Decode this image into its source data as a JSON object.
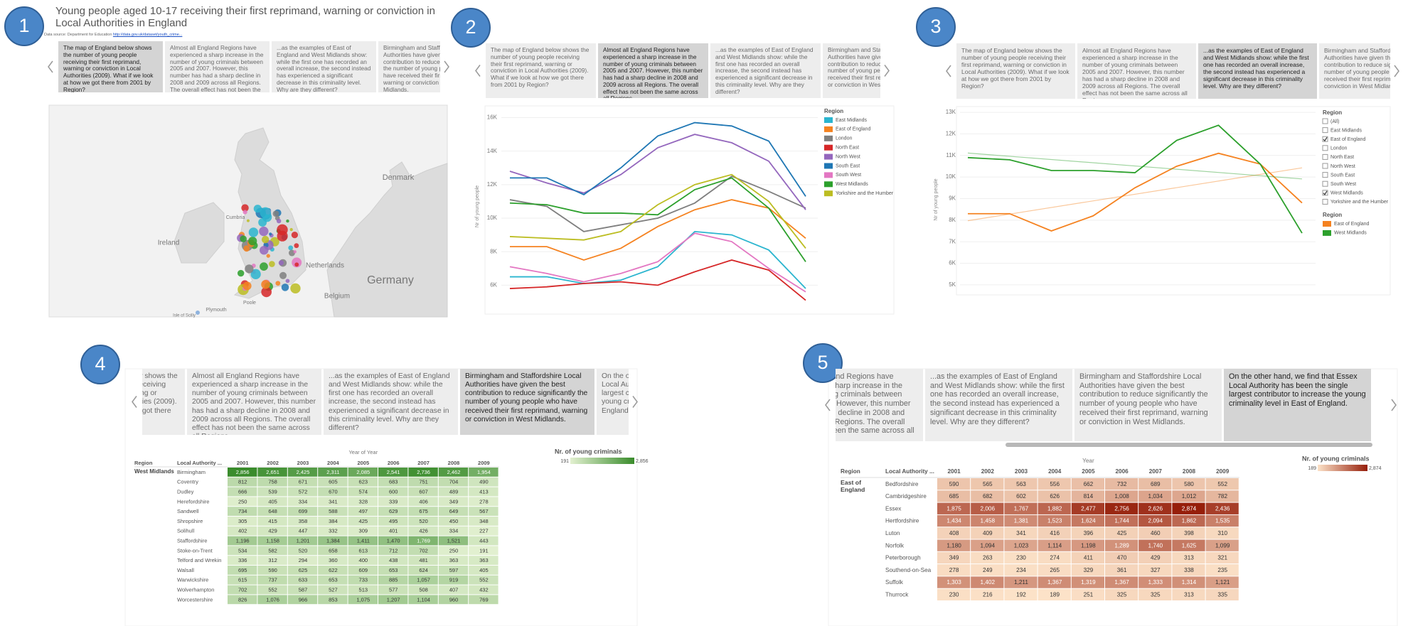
{
  "badges": [
    "1",
    "2",
    "3",
    "4",
    "5"
  ],
  "story_points": [
    "The map of England below shows the number of young people receiving their first reprimand, warning or conviction in Local Authorities (2009). What if we look at how we got there from 2001 by Region?",
    "Almost all England Regions have experienced a sharp increase in the number of young criminals between 2005 and 2007. However, this number has had a sharp decline in 2008 and 2009 across all Regions. The overall effect has not been the same across all Regions...",
    "...as the examples of East of England and West Midlands show: while the first one has recorded an overall increase, the second instead has experienced a significant decrease in this criminality level. Why are they different?",
    "Birmingham and Staffordshire Local Authorities have given the best contribution to reduce significantly the number of young people who have received their first reprimand, warning or conviction in West Midlands.",
    "On the other hand, we find that Essex Local Authority has been the single largest contributor to increase the young criminality level in East of England."
  ],
  "panel1": {
    "title": "Young people aged 10-17 receiving their first reprimand, warning or conviction in Local Authorities in England",
    "source": "Data source: Department for Education",
    "source_link": "http://data.gov.uk/dataset/youth_crime...",
    "map_labels": [
      "Denmark",
      "Ireland",
      "Cumbria",
      "Netherlands",
      "Germany",
      "Belgium",
      "Plymouth",
      "Poole",
      "Isle of Scilly"
    ]
  },
  "chart_data": [
    {
      "type": "line",
      "y_label": "Nr of young people",
      "legend_title": "Region",
      "ylim": [
        4700,
        16700
      ],
      "yticks": [
        {
          "value": 6000,
          "label": "6K"
        },
        {
          "value": 8000,
          "label": "8K"
        },
        {
          "value": 10000,
          "label": "10K"
        },
        {
          "value": 12000,
          "label": "12K"
        },
        {
          "value": 14000,
          "label": "14K"
        },
        {
          "value": 16000,
          "label": "16K"
        }
      ],
      "grid": true,
      "series": [
        {
          "name": "East Midlands",
          "color": "#2bb5cf",
          "values": [
            6500,
            6500,
            6100,
            6300,
            7100,
            9200,
            9000,
            8100,
            5800
          ]
        },
        {
          "name": "East of England",
          "color": "#f58220",
          "values": [
            8300,
            8300,
            7500,
            8200,
            9500,
            10500,
            11100,
            10600,
            8800
          ]
        },
        {
          "name": "London",
          "color": "#7f7f7f",
          "values": [
            11100,
            10700,
            9200,
            9600,
            10000,
            10900,
            12500,
            11600,
            10600
          ]
        },
        {
          "name": "North East",
          "color": "#d62728",
          "values": [
            5800,
            5900,
            6100,
            6200,
            6000,
            6800,
            7500,
            6900,
            5100
          ]
        },
        {
          "name": "North West",
          "color": "#9467bd",
          "values": [
            12800,
            12100,
            11500,
            12600,
            14200,
            15000,
            14500,
            13400,
            10500
          ]
        },
        {
          "name": "South East",
          "color": "#1f77b4",
          "values": [
            12400,
            12400,
            11400,
            13000,
            14900,
            15700,
            15500,
            14600,
            11300
          ]
        },
        {
          "name": "South West",
          "color": "#e377c2",
          "values": [
            7100,
            6700,
            6200,
            6700,
            7400,
            9100,
            8600,
            7000,
            5600
          ]
        },
        {
          "name": "West Midlands",
          "color": "#2ca02c",
          "values": [
            10900,
            10800,
            10300,
            10300,
            10200,
            11700,
            12400,
            10600,
            7400
          ]
        },
        {
          "name": "Yorkshire and the Humber",
          "color": "#bcbd22",
          "values": [
            8900,
            8800,
            8700,
            9200,
            10800,
            12000,
            12600,
            11000,
            8200
          ]
        }
      ]
    },
    {
      "type": "line",
      "y_label": "Nr of young people",
      "filter_title": "Region",
      "filter_items": [
        {
          "label": "(All)",
          "checked": false
        },
        {
          "label": "East Midlands",
          "checked": false
        },
        {
          "label": "East of England",
          "checked": true
        },
        {
          "label": "London",
          "checked": false
        },
        {
          "label": "North East",
          "checked": false
        },
        {
          "label": "North West",
          "checked": false
        },
        {
          "label": "South East",
          "checked": false
        },
        {
          "label": "South West",
          "checked": false
        },
        {
          "label": "West Midlands",
          "checked": true
        },
        {
          "label": "Yorkshire and the Humber",
          "checked": false
        }
      ],
      "legend_title": "Region",
      "trend_lines": true,
      "ylim": [
        4700,
        13200
      ],
      "yticks": [
        {
          "value": 5000,
          "label": "5K"
        },
        {
          "value": 6000,
          "label": "6K"
        },
        {
          "value": 7000,
          "label": "7K"
        },
        {
          "value": 8000,
          "label": "8K"
        },
        {
          "value": 9000,
          "label": "9K"
        },
        {
          "value": 10000,
          "label": "10K"
        },
        {
          "value": 11000,
          "label": "11K"
        },
        {
          "value": 12000,
          "label": "12K"
        },
        {
          "value": 13000,
          "label": "13K"
        }
      ],
      "grid": true,
      "series": [
        {
          "name": "East of England",
          "color": "#f58220",
          "values": [
            8300,
            8300,
            7500,
            8200,
            9500,
            10500,
            11100,
            10600,
            8800
          ]
        },
        {
          "name": "West Midlands",
          "color": "#2ca02c",
          "values": [
            10900,
            10800,
            10300,
            10300,
            10200,
            11700,
            12400,
            10600,
            7400
          ]
        }
      ]
    }
  ],
  "tables": [
    {
      "header_title": "Year of Year",
      "columns": [
        "Region",
        "Local Authority ...",
        "2001",
        "2002",
        "2003",
        "2004",
        "2005",
        "2006",
        "2007",
        "2008",
        "2009"
      ],
      "region": "West Midlands",
      "legend_title": "Nr. of young criminals",
      "legend_min": {
        "value": 191,
        "label": "191"
      },
      "legend_max": {
        "value": 2856,
        "label": "2,856"
      },
      "rows": [
        {
          "name": "Birmingham",
          "cells": [
            "2,856",
            "2,651",
            "2,425",
            "2,311",
            "2,085",
            "2,541",
            "2,736",
            "2,462",
            "1,954"
          ]
        },
        {
          "name": "Coventry",
          "cells": [
            "812",
            "758",
            "671",
            "605",
            "623",
            "683",
            "751",
            "704",
            "490"
          ]
        },
        {
          "name": "Dudley",
          "cells": [
            "666",
            "539",
            "572",
            "670",
            "574",
            "600",
            "607",
            "489",
            "413"
          ]
        },
        {
          "name": "Herefordshire",
          "cells": [
            "250",
            "405",
            "334",
            "341",
            "328",
            "339",
            "406",
            "349",
            "278"
          ]
        },
        {
          "name": "Sandwell",
          "cells": [
            "734",
            "648",
            "699",
            "588",
            "497",
            "629",
            "675",
            "649",
            "567"
          ]
        },
        {
          "name": "Shropshire",
          "cells": [
            "305",
            "415",
            "358",
            "384",
            "425",
            "495",
            "520",
            "450",
            "348"
          ]
        },
        {
          "name": "Solihull",
          "cells": [
            "402",
            "429",
            "447",
            "332",
            "309",
            "401",
            "426",
            "334",
            "227"
          ]
        },
        {
          "name": "Staffordshire",
          "cells": [
            "1,196",
            "1,158",
            "1,201",
            "1,384",
            "1,411",
            "1,470",
            "1,769",
            "1,521",
            "443"
          ]
        },
        {
          "name": "Stoke-on-Trent",
          "cells": [
            "534",
            "582",
            "520",
            "658",
            "613",
            "712",
            "702",
            "250",
            "191"
          ]
        },
        {
          "name": "Telford and Wrekin",
          "cells": [
            "336",
            "312",
            "294",
            "360",
            "400",
            "438",
            "481",
            "363",
            "363"
          ]
        },
        {
          "name": "Walsall",
          "cells": [
            "695",
            "590",
            "625",
            "622",
            "609",
            "653",
            "624",
            "597",
            "405"
          ]
        },
        {
          "name": "Warwickshire",
          "cells": [
            "615",
            "737",
            "633",
            "653",
            "733",
            "885",
            "1,057",
            "919",
            "552"
          ]
        },
        {
          "name": "Wolverhampton",
          "cells": [
            "702",
            "552",
            "587",
            "527",
            "513",
            "577",
            "508",
            "407",
            "432"
          ]
        },
        {
          "name": "Worcestershire",
          "cells": [
            "826",
            "1,076",
            "966",
            "853",
            "1,075",
            "1,207",
            "1,104",
            "960",
            "769"
          ]
        }
      ]
    },
    {
      "header_title": "Year",
      "columns": [
        "Region",
        "Local Authority ...",
        "2001",
        "2002",
        "2003",
        "2004",
        "2005",
        "2006",
        "2007",
        "2008",
        "2009"
      ],
      "region": "East of England",
      "legend_title": "Nr. of young criminals",
      "legend_min": {
        "value": 189,
        "label": "189"
      },
      "legend_max": {
        "value": 2874,
        "label": "2,874"
      },
      "rows": [
        {
          "name": "Bedfordshire",
          "cells": [
            "590",
            "565",
            "563",
            "556",
            "662",
            "732",
            "689",
            "580",
            "552"
          ]
        },
        {
          "name": "Cambridgeshire",
          "cells": [
            "685",
            "682",
            "602",
            "626",
            "814",
            "1,008",
            "1,034",
            "1,012",
            "782"
          ]
        },
        {
          "name": "Essex",
          "cells": [
            "1,875",
            "2,006",
            "1,767",
            "1,882",
            "2,477",
            "2,756",
            "2,626",
            "2,874",
            "2,436"
          ]
        },
        {
          "name": "Hertfordshire",
          "cells": [
            "1,434",
            "1,458",
            "1,381",
            "1,523",
            "1,624",
            "1,744",
            "2,094",
            "1,862",
            "1,535"
          ]
        },
        {
          "name": "Luton",
          "cells": [
            "408",
            "409",
            "341",
            "416",
            "396",
            "425",
            "460",
            "398",
            "310"
          ]
        },
        {
          "name": "Norfolk",
          "cells": [
            "1,180",
            "1,094",
            "1,023",
            "1,114",
            "1,198",
            "1,289",
            "1,740",
            "1,625",
            "1,099"
          ]
        },
        {
          "name": "Peterborough",
          "cells": [
            "349",
            "263",
            "230",
            "274",
            "411",
            "470",
            "429",
            "313",
            "321"
          ]
        },
        {
          "name": "Southend-on-Sea",
          "cells": [
            "278",
            "249",
            "234",
            "265",
            "329",
            "361",
            "327",
            "338",
            "235"
          ]
        },
        {
          "name": "Suffolk",
          "cells": [
            "1,303",
            "1,402",
            "1,211",
            "1,367",
            "1,319",
            "1,367",
            "1,333",
            "1,314",
            "1,121"
          ]
        },
        {
          "name": "Thurrock",
          "cells": [
            "230",
            "216",
            "192",
            "189",
            "251",
            "325",
            "325",
            "313",
            "335"
          ]
        }
      ]
    }
  ]
}
